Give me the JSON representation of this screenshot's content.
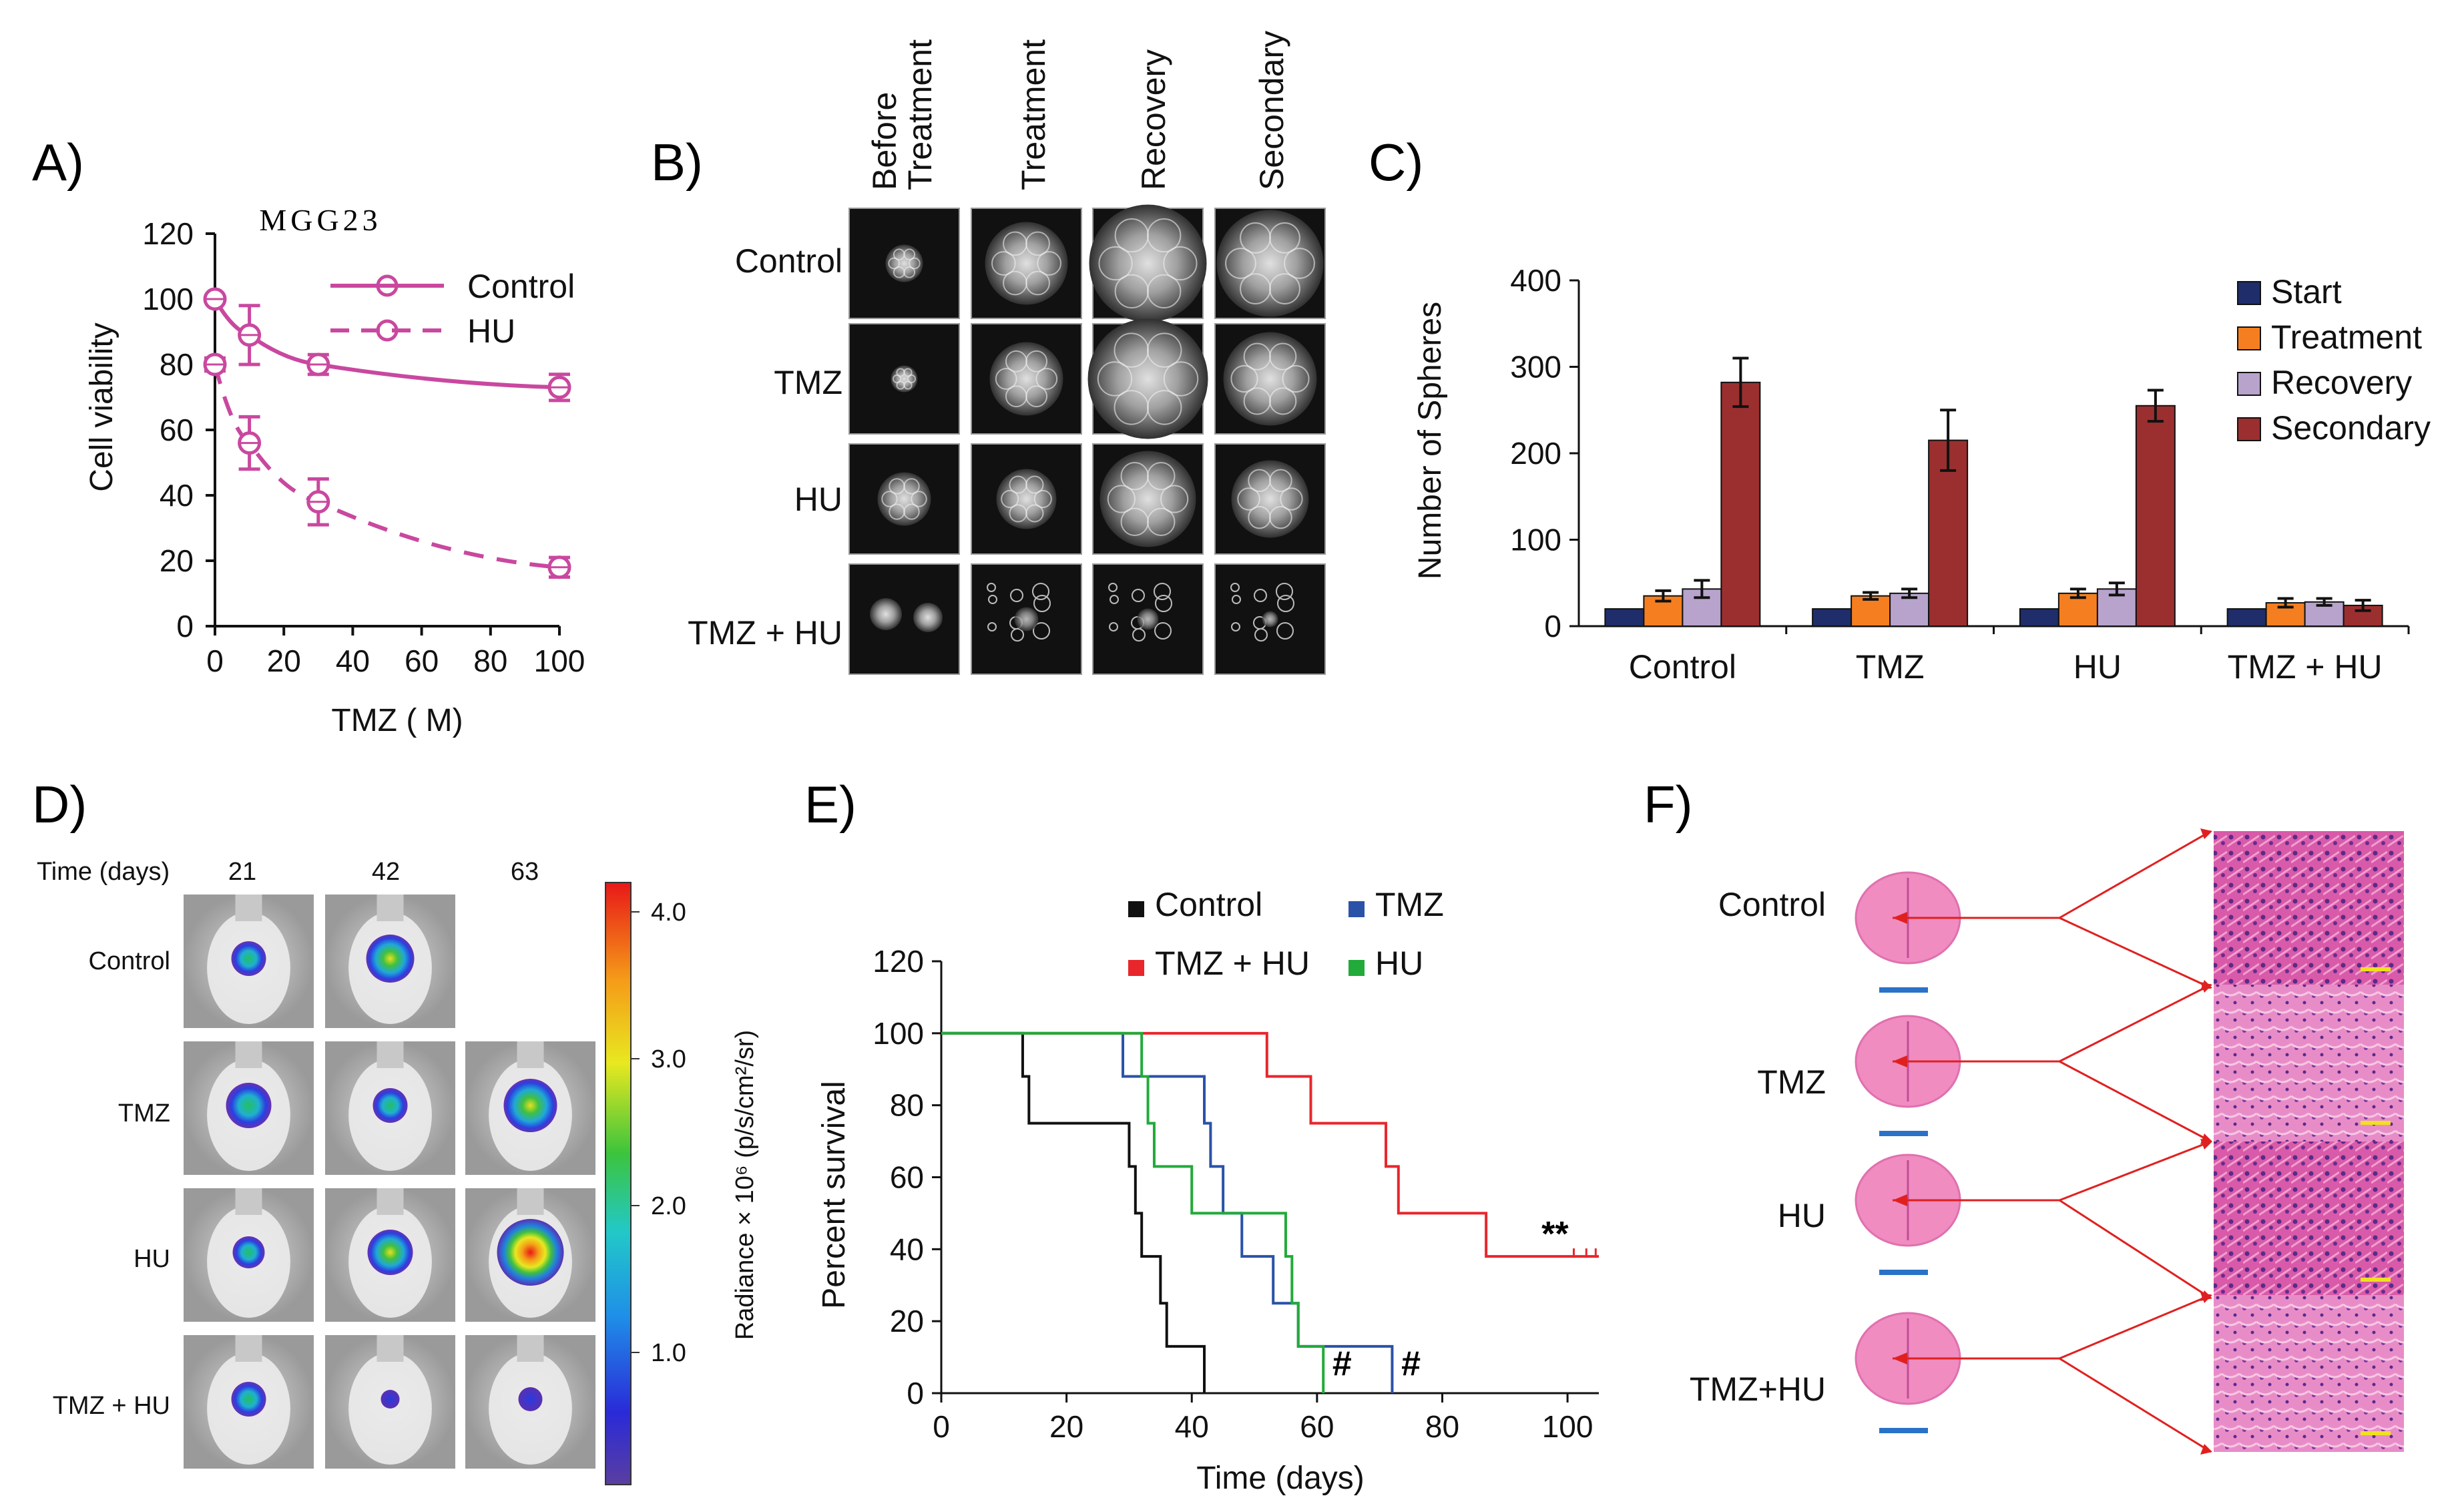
{
  "figure": {
    "panel_labels": [
      "A)",
      "B)",
      "C)",
      "D)",
      "E)",
      "F)"
    ]
  },
  "chart_data": [
    {
      "id": "A",
      "type": "line",
      "title": "MGG23",
      "xlabel": "TMZ (  M)",
      "ylabel": "Cell viability",
      "xlim": [
        0,
        100
      ],
      "ylim": [
        0,
        120
      ],
      "xticks": [
        0,
        20,
        40,
        60,
        80,
        100
      ],
      "yticks": [
        0,
        20,
        40,
        60,
        80,
        100,
        120
      ],
      "legend_position": "top-right",
      "color": "#c9489f",
      "series": [
        {
          "name": "Control",
          "style": "solid",
          "x": [
            0,
            10,
            30,
            100
          ],
          "y": [
            100,
            89,
            80,
            73
          ],
          "err": [
            0,
            9,
            3,
            4
          ]
        },
        {
          "name": "HU",
          "style": "dashed",
          "x": [
            0,
            10,
            30,
            100
          ],
          "y": [
            80,
            56,
            38,
            18
          ],
          "err": [
            2,
            8,
            7,
            3
          ]
        }
      ]
    },
    {
      "id": "C",
      "type": "bar",
      "title": "",
      "xlabel": "",
      "ylabel": "Number of Spheres",
      "ylim": [
        0,
        400
      ],
      "yticks": [
        0,
        100,
        200,
        300,
        400
      ],
      "categories": [
        "Control",
        "TMZ",
        "HU",
        "TMZ + HU"
      ],
      "legend_position": "top-right",
      "series": [
        {
          "name": "Start",
          "color": "#1f2d6b",
          "values": [
            20,
            20,
            20,
            20
          ],
          "err": [
            0,
            0,
            0,
            0
          ]
        },
        {
          "name": "Treatment",
          "color": "#f57f20",
          "values": [
            35,
            35,
            38,
            27
          ],
          "err": [
            6,
            4,
            5,
            5
          ]
        },
        {
          "name": "Recovery",
          "color": "#b7a3cc",
          "values": [
            43,
            38,
            43,
            28
          ],
          "err": [
            10,
            5,
            7,
            4
          ]
        },
        {
          "name": "Secondary",
          "color": "#9b2f2f",
          "values": [
            282,
            215,
            255,
            24
          ],
          "err": [
            28,
            35,
            18,
            6
          ]
        }
      ]
    },
    {
      "id": "E",
      "type": "line",
      "subtype": "kaplan-meier",
      "xlabel": "Time (days)",
      "ylabel": "Percent survival",
      "xlim": [
        0,
        105
      ],
      "ylim": [
        0,
        120
      ],
      "xticks": [
        0,
        20,
        40,
        60,
        80,
        100
      ],
      "yticks": [
        0,
        20,
        40,
        60,
        80,
        100,
        120
      ],
      "legend_position": "top",
      "annotations": [
        {
          "text": "**",
          "x": 98,
          "y": 41,
          "series": "TMZ + HU"
        },
        {
          "text": "#",
          "x": 64,
          "y": 5,
          "series": "HU"
        },
        {
          "text": "#",
          "x": 75,
          "y": 5,
          "series": "TMZ"
        }
      ],
      "series": [
        {
          "name": "Control",
          "color": "#111111",
          "steps": [
            [
              0,
              100
            ],
            [
              13,
              100
            ],
            [
              13,
              88
            ],
            [
              14,
              88
            ],
            [
              14,
              75
            ],
            [
              30,
              75
            ],
            [
              30,
              63
            ],
            [
              31,
              63
            ],
            [
              31,
              50
            ],
            [
              32,
              50
            ],
            [
              32,
              38
            ],
            [
              35,
              38
            ],
            [
              35,
              25
            ],
            [
              36,
              25
            ],
            [
              36,
              13
            ],
            [
              42,
              13
            ],
            [
              42,
              0
            ]
          ]
        },
        {
          "name": "TMZ",
          "color": "#2a52a8",
          "steps": [
            [
              0,
              100
            ],
            [
              29,
              100
            ],
            [
              29,
              88
            ],
            [
              42,
              88
            ],
            [
              42,
              75
            ],
            [
              43,
              75
            ],
            [
              43,
              63
            ],
            [
              45,
              63
            ],
            [
              45,
              50
            ],
            [
              48,
              50
            ],
            [
              48,
              38
            ],
            [
              53,
              38
            ],
            [
              53,
              25
            ],
            [
              57,
              25
            ],
            [
              57,
              13
            ],
            [
              72,
              13
            ],
            [
              72,
              0
            ]
          ]
        },
        {
          "name": "TMZ + HU",
          "color": "#e8262c",
          "steps": [
            [
              0,
              100
            ],
            [
              52,
              100
            ],
            [
              52,
              88
            ],
            [
              59,
              88
            ],
            [
              59,
              75
            ],
            [
              71,
              75
            ],
            [
              71,
              63
            ],
            [
              73,
              63
            ],
            [
              73,
              50
            ],
            [
              87,
              50
            ],
            [
              87,
              38
            ],
            [
              105,
              38
            ]
          ]
        },
        {
          "name": "HU",
          "color": "#22aa3a",
          "steps": [
            [
              0,
              100
            ],
            [
              32,
              100
            ],
            [
              32,
              88
            ],
            [
              33,
              88
            ],
            [
              33,
              75
            ],
            [
              34,
              75
            ],
            [
              34,
              63
            ],
            [
              40,
              63
            ],
            [
              40,
              50
            ],
            [
              55,
              50
            ],
            [
              55,
              38
            ],
            [
              56,
              38
            ],
            [
              56,
              25
            ],
            [
              57,
              25
            ],
            [
              57,
              13
            ],
            [
              61,
              13
            ],
            [
              61,
              0
            ]
          ]
        }
      ]
    }
  ],
  "panelB": {
    "columns": [
      "Before Treatment",
      "Treatment",
      "Recovery",
      "Secondary"
    ],
    "rows": [
      "Control",
      "TMZ",
      "HU",
      "TMZ + HU"
    ]
  },
  "panelD": {
    "time_label": "Time (days)",
    "days": [
      "21",
      "42",
      "63"
    ],
    "rows": [
      "Control",
      "TMZ",
      "HU",
      "TMZ + HU"
    ],
    "colorbar_label": "Radiance × 10⁶ (p/s/cm²/sr)",
    "colorbar_ticks": [
      "4.0",
      "3.0",
      "2.0",
      "1.0"
    ],
    "colorbar_values": [
      4.0,
      3.0,
      2.0,
      1.0
    ],
    "colorbar_range": [
      0.1,
      4.2
    ]
  },
  "panelF": {
    "rows": [
      "Control",
      "TMZ",
      "HU",
      "TMZ+HU"
    ]
  }
}
